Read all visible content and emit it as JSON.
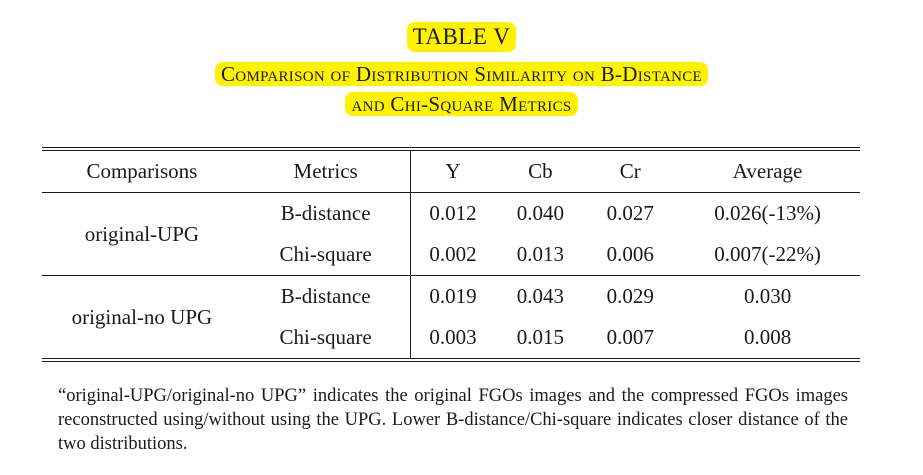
{
  "caption": {
    "table_number": "TABLE V",
    "title_line1": "Comparison of Distribution Similarity on B-Distance",
    "title_line2": "and Chi-Square Metrics"
  },
  "table": {
    "headers": [
      "Comparisons",
      "Metrics",
      "Y",
      "Cb",
      "Cr",
      "Average"
    ],
    "groups": [
      {
        "comparison": "original-UPG",
        "rows": [
          {
            "metric": "B-distance",
            "y": "0.012",
            "cb": "0.040",
            "cr": "0.027",
            "average": "0.026(-13%)"
          },
          {
            "metric": "Chi-square",
            "y": "0.002",
            "cb": "0.013",
            "cr": "0.006",
            "average": "0.007(-22%)"
          }
        ]
      },
      {
        "comparison": "original-no UPG",
        "rows": [
          {
            "metric": "B-distance",
            "y": "0.019",
            "cb": "0.043",
            "cr": "0.029",
            "average": "0.030"
          },
          {
            "metric": "Chi-square",
            "y": "0.003",
            "cb": "0.015",
            "cr": "0.007",
            "average": "0.008"
          }
        ]
      }
    ]
  },
  "note": "“original-UPG/original-no UPG” indicates the original FGOs images and the compressed FGOs images reconstructed using/without using the UPG. Lower B-distance/Chi-square indicates closer distance of the two distributions.",
  "colors": {
    "highlight": "#fff200",
    "text": "#1a1a1a"
  }
}
